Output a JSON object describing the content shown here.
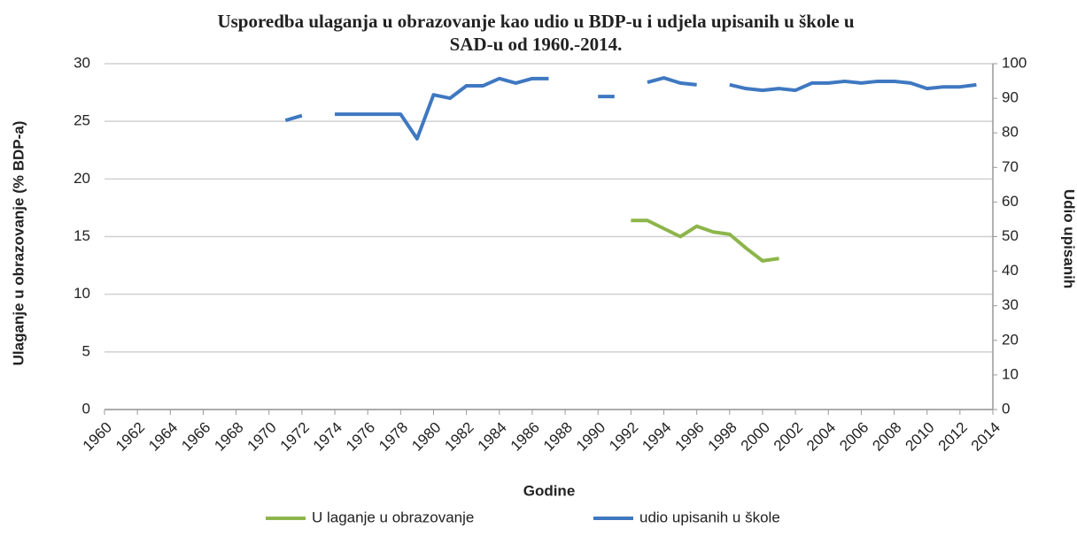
{
  "chart_data": {
    "type": "line",
    "title": [
      "Usporedba  ulaganja u obrazovanje kao udio u BDP-u i udjela upisanih u škole u",
      "SAD-u od 1960.-2014."
    ],
    "xlabel": "Godine",
    "ylabel": "Ulaganje  u obrazovanje  (% BDP-a)",
    "y2label": "Udio upisanih",
    "x": [
      1960,
      1961,
      1962,
      1963,
      1964,
      1965,
      1966,
      1967,
      1968,
      1969,
      1970,
      1971,
      1972,
      1973,
      1974,
      1975,
      1976,
      1977,
      1978,
      1979,
      1980,
      1981,
      1982,
      1983,
      1984,
      1985,
      1986,
      1987,
      1988,
      1989,
      1990,
      1991,
      1992,
      1993,
      1994,
      1995,
      1996,
      1997,
      1998,
      1999,
      2000,
      2001,
      2002,
      2003,
      2004,
      2005,
      2006,
      2007,
      2008,
      2009,
      2010,
      2011,
      2012,
      2013,
      2014
    ],
    "xlim": [
      1960,
      2014
    ],
    "xticks": [
      1960,
      1962,
      1964,
      1966,
      1968,
      1970,
      1972,
      1974,
      1976,
      1978,
      1980,
      1982,
      1984,
      1986,
      1988,
      1990,
      1992,
      1994,
      1996,
      1998,
      2000,
      2002,
      2004,
      2006,
      2008,
      2010,
      2012,
      2014
    ],
    "ylim": [
      0,
      30
    ],
    "yticks": [
      0,
      5,
      10,
      15,
      20,
      25,
      30
    ],
    "y2lim": [
      0,
      100
    ],
    "y2ticks": [
      0,
      10,
      20,
      30,
      40,
      50,
      60,
      70,
      80,
      90,
      100
    ],
    "grid": true,
    "legend": "bottom",
    "series": [
      {
        "name": "U laganje u obrazovanje",
        "color": "#8db54b",
        "axis": "y",
        "values": [
          null,
          null,
          null,
          null,
          null,
          null,
          null,
          null,
          null,
          null,
          null,
          null,
          null,
          null,
          null,
          null,
          null,
          null,
          null,
          null,
          null,
          null,
          null,
          null,
          null,
          null,
          null,
          null,
          null,
          null,
          null,
          null,
          16.4,
          16.4,
          15.7,
          15.0,
          15.9,
          15.4,
          15.2,
          14.0,
          12.9,
          13.1,
          null,
          null,
          null,
          null,
          null,
          null,
          null,
          null,
          null,
          null,
          null,
          null,
          null
        ]
      },
      {
        "name": "udio upisanih u škole",
        "color": "#3f78c1",
        "axis": "y2",
        "values": [
          null,
          null,
          null,
          null,
          null,
          null,
          null,
          null,
          null,
          null,
          null,
          83.6,
          85.0,
          null,
          85.4,
          85.4,
          85.4,
          85.4,
          85.4,
          78.3,
          91.0,
          90.0,
          93.6,
          93.6,
          95.7,
          94.4,
          95.7,
          95.7,
          null,
          null,
          90.5,
          90.5,
          null,
          94.6,
          95.9,
          94.4,
          93.9,
          null,
          93.9,
          92.8,
          92.3,
          92.8,
          92.3,
          94.4,
          94.4,
          94.9,
          94.4,
          94.9,
          94.9,
          94.4,
          92.8,
          93.3,
          93.3,
          93.9,
          null
        ]
      }
    ]
  }
}
